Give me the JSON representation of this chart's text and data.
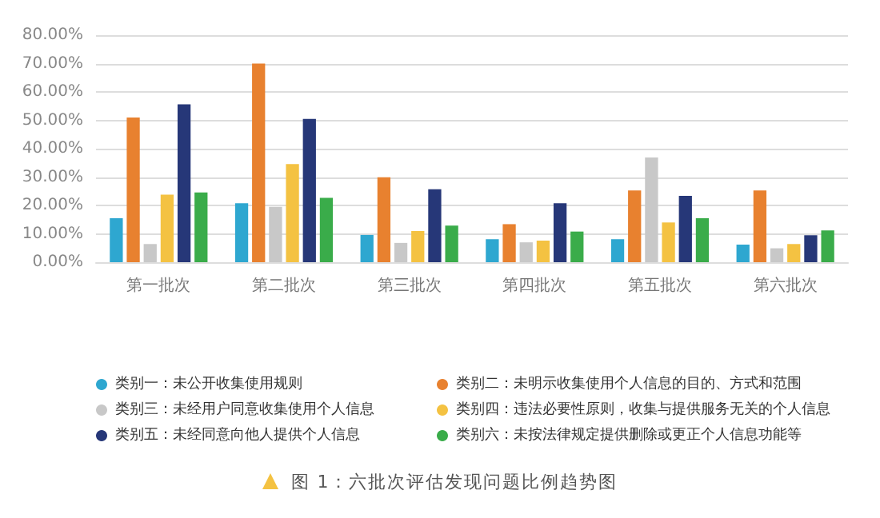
{
  "chart_data": {
    "type": "bar",
    "categories": [
      "第一批次",
      "第二批次",
      "第三批次",
      "第四批次",
      "第五批次",
      "第六批次"
    ],
    "series": [
      {
        "name": "类别一：未公开收集使用规则",
        "color": "#2ea7d0",
        "values": [
          15.5,
          20.8,
          9.6,
          8.1,
          8.1,
          6.2
        ]
      },
      {
        "name": "类别二：未明示收集使用个人信息的目的、方式和范围",
        "color": "#e8812f",
        "values": [
          51,
          70,
          29.9,
          13.4,
          25.3,
          25.3
        ]
      },
      {
        "name": "类别三：未经用户同意收集使用个人信息",
        "color": "#c8c8c8",
        "values": [
          6.4,
          19.5,
          6.8,
          7,
          36.9,
          4.9
        ]
      },
      {
        "name": "类别四：违法必要性原则，收集与提供服务无关的个人信息",
        "color": "#f4c242",
        "values": [
          23.8,
          34.6,
          11,
          7.6,
          14,
          6.4
        ]
      },
      {
        "name": "类别五：未经同意向他人提供个人信息",
        "color": "#263778",
        "values": [
          55.6,
          50.5,
          25.7,
          20.8,
          23.4,
          9.5
        ]
      },
      {
        "name": "类别六：未按法律规定提供删除或更正个人信息功能等",
        "color": "#3aac4a",
        "values": [
          24.6,
          22.7,
          12.9,
          10.8,
          15.5,
          11.2
        ]
      }
    ],
    "ylim": [
      0,
      80
    ],
    "yticks": [
      {
        "value": 0,
        "label": "0.00%"
      },
      {
        "value": 10,
        "label": "10.00%"
      },
      {
        "value": 20,
        "label": "20.00%"
      },
      {
        "value": 30,
        "label": "30.00%"
      },
      {
        "value": 40,
        "label": "40.00%"
      },
      {
        "value": 50,
        "label": "50.00%"
      },
      {
        "value": 60,
        "label": "60.00%"
      },
      {
        "value": 70,
        "label": "70.00%"
      },
      {
        "value": 80,
        "label": "80.00%"
      }
    ],
    "grid": "y",
    "legend": "bottom",
    "annotations": [
      "图 1：六批次评估发现问题比例趋势图"
    ]
  }
}
